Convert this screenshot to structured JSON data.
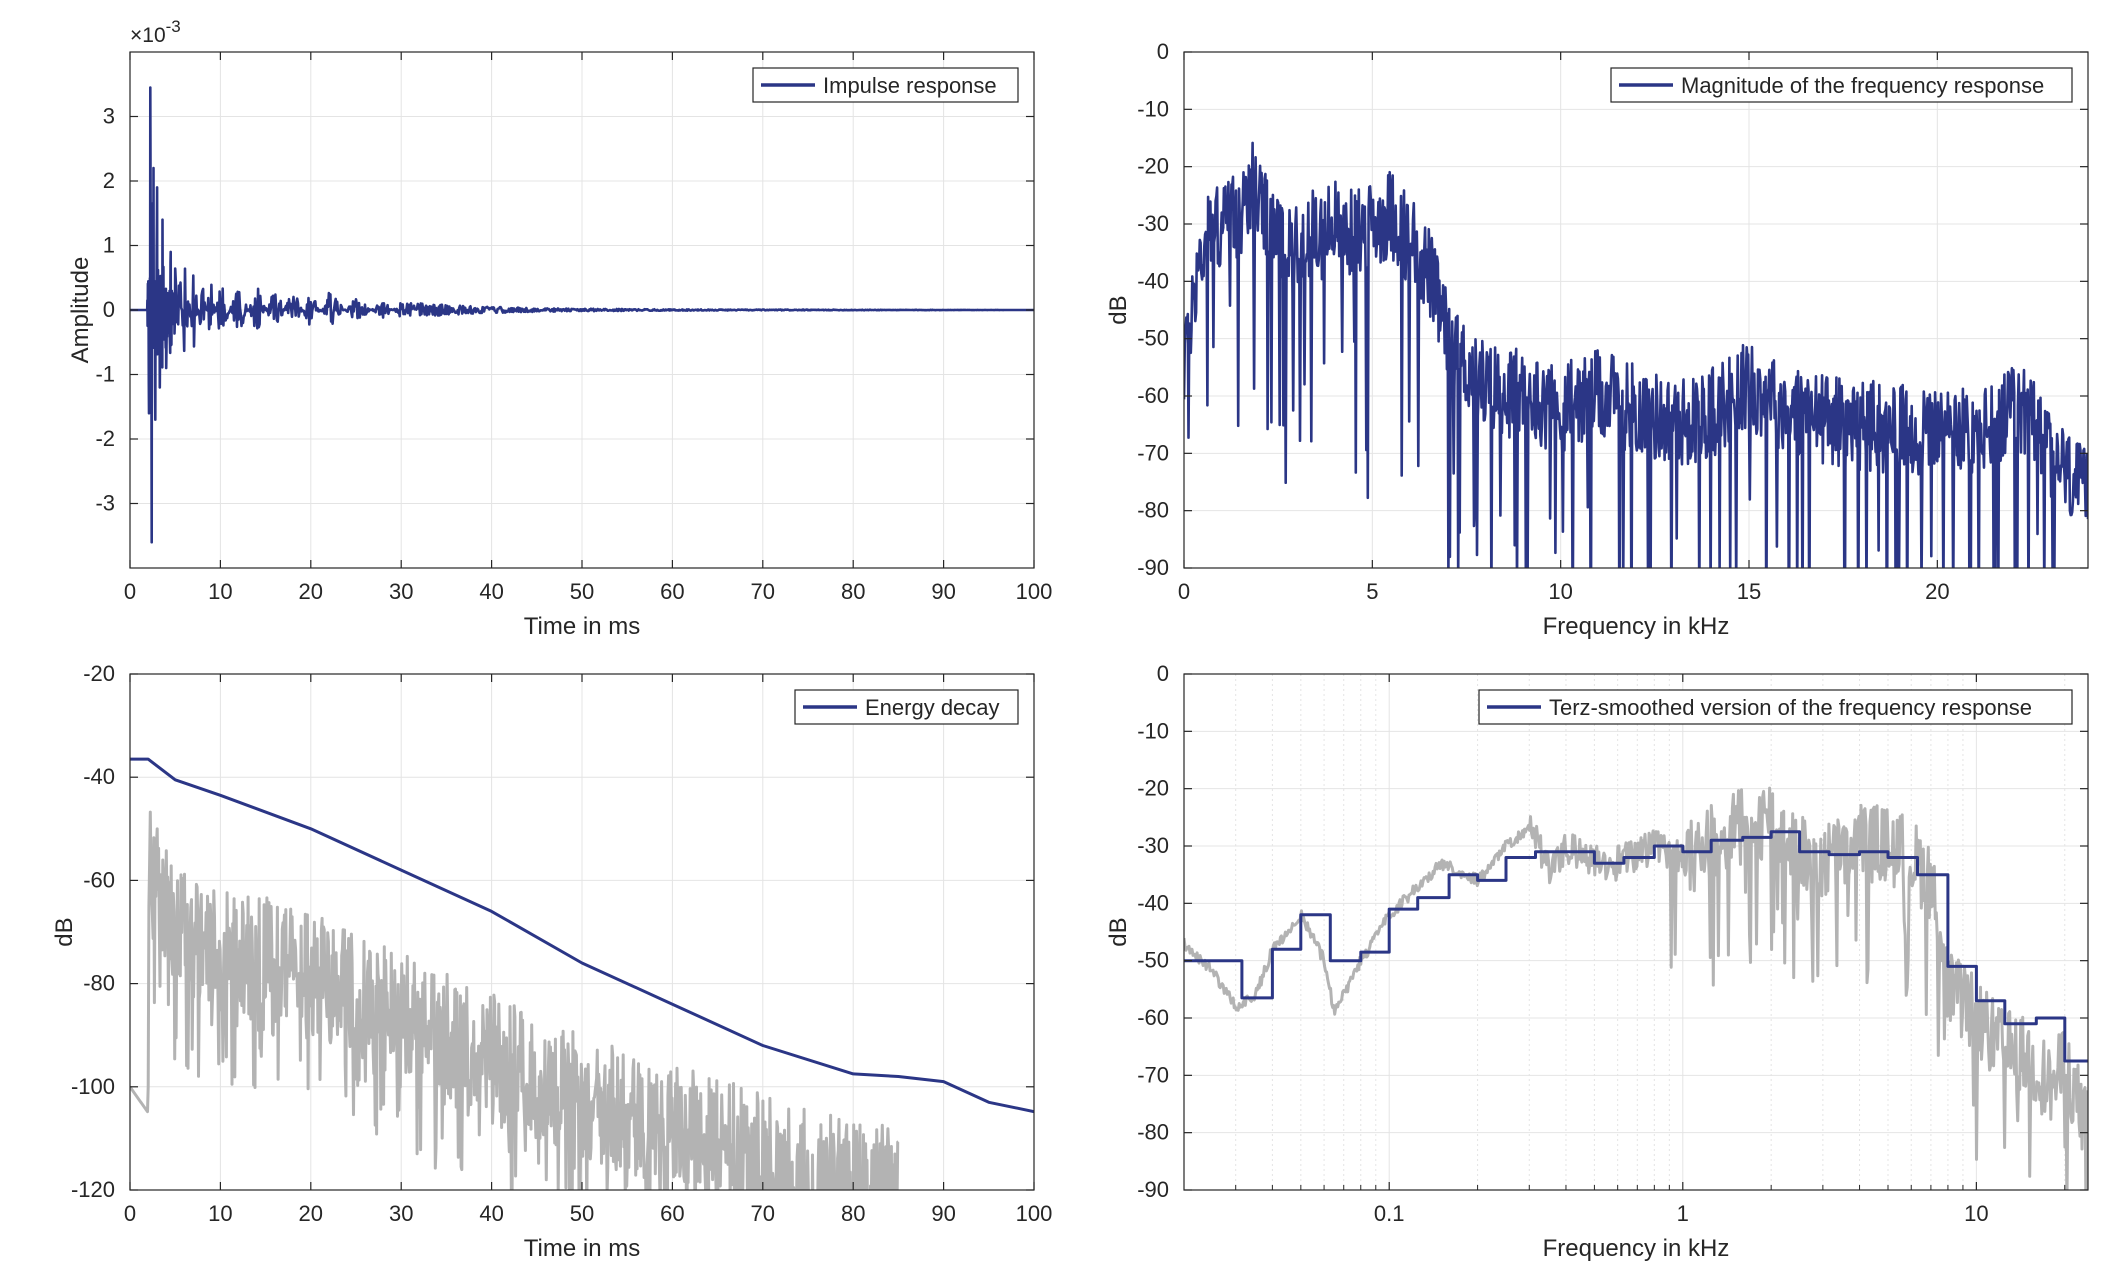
{
  "chart_data": [
    {
      "id": "ir",
      "type": "line",
      "title": "",
      "xlabel": "Time in ms",
      "ylabel": "Amplitude",
      "exponent_label": "×10",
      "exponent_power": "-3",
      "xlim": [
        0,
        100
      ],
      "ylim": [
        -4,
        4
      ],
      "xticks": [
        0,
        10,
        20,
        30,
        40,
        50,
        60,
        70,
        80,
        90,
        100
      ],
      "yticks": [
        -3,
        -2,
        -1,
        0,
        1,
        2,
        3
      ],
      "grid": true,
      "legend_position": "top-right",
      "series": [
        {
          "name": "Impulse response",
          "color": "#2b3686",
          "x": [
            0,
            1.9,
            2.1,
            2.25,
            2.4,
            2.6,
            2.8,
            3.0,
            3.3,
            3.6,
            4.0,
            4.5,
            5.0,
            5.5,
            6.0,
            7.0,
            8.0,
            9.0,
            10.0,
            12.0,
            14.0,
            16.0,
            18.0,
            20.0,
            22.0,
            25.0,
            28.0,
            30.0,
            35.0,
            40.0,
            45.0,
            50.0,
            60.0,
            100.0
          ],
          "values": [
            0,
            0,
            -1.6,
            3.45,
            -3.6,
            2.2,
            -1.7,
            1.9,
            -1.2,
            1.4,
            -0.9,
            0.9,
            -0.9,
            0.8,
            -0.8,
            0.8,
            -0.6,
            0.6,
            -0.5,
            0.45,
            -0.4,
            0.4,
            -0.35,
            0.3,
            -0.3,
            0.2,
            -0.15,
            0.12,
            0.08,
            0.05,
            0.03,
            0.02,
            0.01,
            0.0
          ]
        }
      ]
    },
    {
      "id": "freq",
      "type": "line",
      "title": "",
      "xlabel": "Frequency in kHz",
      "ylabel": "dB",
      "xlim": [
        0,
        24
      ],
      "ylim": [
        -90,
        0
      ],
      "xticks": [
        0,
        5,
        10,
        15,
        20
      ],
      "yticks": [
        0,
        -10,
        -20,
        -30,
        -40,
        -50,
        -60,
        -70,
        -80,
        -90
      ],
      "grid": true,
      "legend_position": "top-right",
      "series": [
        {
          "name": "Magnitude of the frequency response",
          "color": "#2b3686",
          "x": [
            0,
            0.3,
            0.6,
            1.0,
            1.5,
            1.8,
            2.2,
            2.8,
            3.2,
            3.6,
            4.0,
            4.5,
            5.0,
            5.5,
            6.0,
            6.5,
            7.0,
            7.5,
            8.0,
            9.0,
            10.0,
            11.0,
            12.0,
            13.0,
            14.0,
            15.0,
            16.0,
            17.0,
            18.0,
            19.0,
            20.0,
            21.0,
            22.0,
            22.5,
            23.0,
            24.0
          ],
          "values": [
            -55,
            -40,
            -32,
            -30,
            -28,
            -22,
            -30,
            -35,
            -32,
            -32,
            -30,
            -32,
            -30,
            -28,
            -33,
            -38,
            -50,
            -55,
            -58,
            -60,
            -62,
            -60,
            -62,
            -65,
            -63,
            -58,
            -62,
            -64,
            -65,
            -66,
            -66,
            -67,
            -63,
            -62,
            -70,
            -78
          ]
        }
      ]
    },
    {
      "id": "edc",
      "type": "line",
      "title": "",
      "xlabel": "Time in ms",
      "ylabel": "dB",
      "xlim": [
        0,
        100
      ],
      "ylim": [
        -120,
        -20
      ],
      "xticks": [
        0,
        10,
        20,
        30,
        40,
        50,
        60,
        70,
        80,
        90,
        100
      ],
      "yticks": [
        -20,
        -40,
        -60,
        -80,
        -100,
        -120
      ],
      "grid": true,
      "legend_position": "top-right",
      "series": [
        {
          "name": "Energy decay",
          "color": "#2b3686",
          "x": [
            0,
            2,
            5,
            10,
            20,
            30,
            40,
            50,
            60,
            70,
            80,
            85,
            90,
            95,
            100
          ],
          "values": [
            -36.5,
            -36.5,
            -40.5,
            -43.5,
            -50,
            -58,
            -66,
            -76,
            -84,
            -92,
            -97.5,
            -98,
            -99,
            -103,
            -104.8
          ]
        },
        {
          "name": "",
          "color": "#b3b3b3",
          "x": [
            0,
            2,
            2.1,
            3,
            5,
            10,
            15,
            20,
            25,
            30,
            35,
            40,
            45,
            50,
            55,
            60,
            65,
            70,
            75,
            80,
            85
          ],
          "values": [
            -100,
            -105,
            -50,
            -60,
            -70,
            -72,
            -75,
            -78,
            -82,
            -86,
            -90,
            -94,
            -98,
            -102,
            -105,
            -108,
            -110,
            -113,
            -115,
            -118,
            -120
          ]
        }
      ]
    },
    {
      "id": "terz",
      "type": "line",
      "title": "",
      "xlabel": "Frequency in kHz",
      "ylabel": "dB",
      "xscale": "log",
      "xlim": [
        0.02,
        24
      ],
      "ylim": [
        -90,
        0
      ],
      "xticks": [
        0.1,
        1,
        10
      ],
      "xtick_labels": [
        "0.1",
        "1",
        "10"
      ],
      "yticks": [
        0,
        -10,
        -20,
        -30,
        -40,
        -50,
        -60,
        -70,
        -80,
        -90
      ],
      "grid": true,
      "legend_position": "top-right",
      "series": [
        {
          "name": "Terz-smoothed version of the frequency response",
          "color": "#2b3686",
          "step": true,
          "x": [
            0.02,
            0.025,
            0.0315,
            0.04,
            0.05,
            0.063,
            0.08,
            0.1,
            0.125,
            0.16,
            0.2,
            0.25,
            0.315,
            0.4,
            0.5,
            0.63,
            0.8,
            1.0,
            1.25,
            1.6,
            2.0,
            2.5,
            3.15,
            4.0,
            5.0,
            6.3,
            8.0,
            10.0,
            12.5,
            16.0,
            20.0,
            24.0
          ],
          "values": [
            -50,
            -50,
            -56.5,
            -48,
            -42,
            -50,
            -48.5,
            -41,
            -39,
            -35,
            -36,
            -32,
            -31,
            -31,
            -33,
            -32,
            -30,
            -31,
            -29,
            -28.5,
            -27.5,
            -31,
            -31.5,
            -31,
            -32,
            -35,
            -51,
            -57,
            -61,
            -60,
            -67.5,
            -67.5
          ]
        },
        {
          "name": "",
          "color": "#b3b3b3",
          "x": [
            0.02,
            0.025,
            0.03,
            0.035,
            0.04,
            0.05,
            0.06,
            0.065,
            0.08,
            0.1,
            0.12,
            0.15,
            0.2,
            0.25,
            0.3,
            0.35,
            0.4,
            0.5,
            0.6,
            0.8,
            1.0,
            1.5,
            2.0,
            2.5,
            3.0,
            4.0,
            5.0,
            6.0,
            7.0,
            8.0,
            10.0,
            12.0,
            15.0,
            18.0,
            20.0,
            24.0
          ],
          "values": [
            -47,
            -52,
            -58,
            -56,
            -48,
            -42,
            -50,
            -59,
            -50,
            -42,
            -38,
            -33,
            -36,
            -30,
            -27,
            -34,
            -30,
            -33,
            -33,
            -30,
            -32,
            -27,
            -25,
            -31,
            -33,
            -29,
            -30,
            -32,
            -36,
            -55,
            -60,
            -65,
            -67,
            -72,
            -68,
            -80
          ]
        }
      ]
    }
  ]
}
